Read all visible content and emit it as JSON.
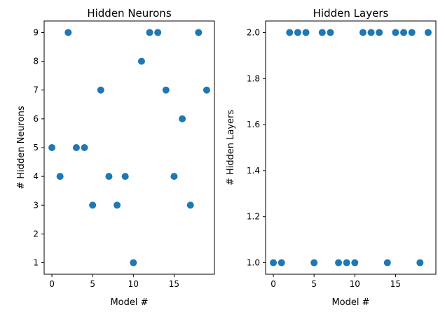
{
  "chart_data": [
    {
      "type": "scatter",
      "title": "Hidden Neurons",
      "xlabel": "Model #",
      "ylabel": "# Hidden Neurons",
      "color": "#1f77b4",
      "xlim": [
        -0.95,
        19.95
      ],
      "ylim": [
        0.6,
        9.4
      ],
      "xticks": [
        0,
        5,
        10,
        15
      ],
      "yticks": [
        1,
        2,
        3,
        4,
        5,
        6,
        7,
        8,
        9
      ],
      "grid": false,
      "x": [
        0,
        1,
        2,
        3,
        4,
        5,
        6,
        7,
        8,
        9,
        10,
        11,
        12,
        13,
        14,
        15,
        16,
        17,
        18,
        19
      ],
      "y": [
        5,
        4,
        9,
        5,
        5,
        3,
        7,
        4,
        3,
        4,
        1,
        8,
        9,
        9,
        7,
        4,
        6,
        3,
        9,
        7
      ]
    },
    {
      "type": "scatter",
      "title": "Hidden Layers",
      "xlabel": "Model #",
      "ylabel": "# Hidden Layers",
      "color": "#1f77b4",
      "xlim": [
        -0.95,
        19.95
      ],
      "ylim": [
        0.95,
        2.05
      ],
      "xticks": [
        0,
        5,
        10,
        15
      ],
      "yticks": [
        1.0,
        1.2,
        1.4,
        1.6,
        1.8,
        2.0
      ],
      "ytick_labels": [
        "1.0",
        "1.2",
        "1.4",
        "1.6",
        "1.8",
        "2.0"
      ],
      "grid": false,
      "x": [
        0,
        1,
        2,
        3,
        4,
        5,
        6,
        7,
        8,
        9,
        10,
        11,
        12,
        13,
        14,
        15,
        16,
        17,
        18,
        19
      ],
      "y": [
        1,
        1,
        2,
        2,
        2,
        1,
        2,
        2,
        1,
        1,
        1,
        2,
        2,
        2,
        1,
        2,
        2,
        2,
        1,
        2
      ]
    }
  ]
}
